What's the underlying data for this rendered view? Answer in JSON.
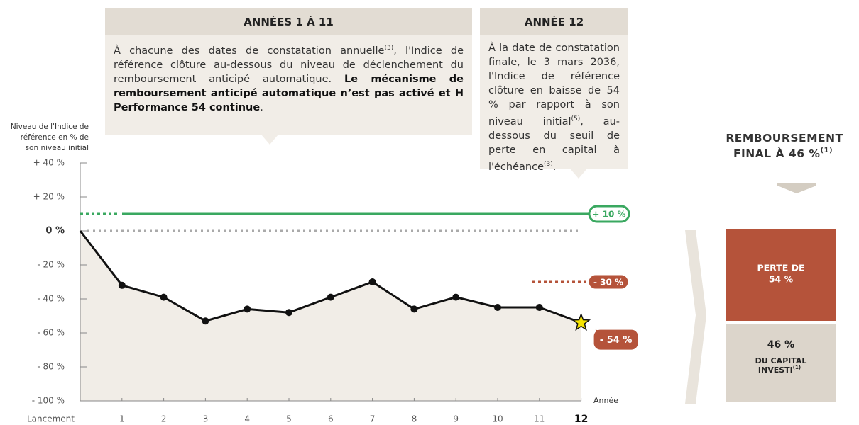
{
  "chart_data": {
    "type": "line",
    "y_axis_label": [
      "Niveau de l'Indice de",
      "référence en % de",
      "son niveau initial"
    ],
    "x_axis_label": "Année",
    "categories": [
      "Lancement",
      "1",
      "2",
      "3",
      "4",
      "5",
      "6",
      "7",
      "8",
      "9",
      "10",
      "11",
      "12"
    ],
    "values": [
      0,
      -32,
      -39,
      -53,
      -46,
      -48,
      -39,
      -30,
      -46,
      -39,
      -45,
      -45,
      -54
    ],
    "color": "#111111",
    "final_label": "- 54 %",
    "final_color": "#b5533a",
    "ylim": [
      -100,
      40
    ],
    "yticks": [
      {
        "value": 40,
        "label": "+ 40 %"
      },
      {
        "value": 20,
        "label": "+ 20 %"
      },
      {
        "value": 0,
        "label": "0 %"
      },
      {
        "value": -20,
        "label": "- 20 %"
      },
      {
        "value": -40,
        "label": "- 40 %"
      },
      {
        "value": -60,
        "label": "- 60 %"
      },
      {
        "value": -80,
        "label": "- 80 %"
      },
      {
        "value": -100,
        "label": "- 100 %"
      }
    ],
    "reference_lines": [
      {
        "value": 10,
        "label": "+ 10 %",
        "color": "#3aa860"
      },
      {
        "value": -30,
        "label": "- 30 %",
        "color": "#b5533a"
      },
      {
        "value": 0,
        "color": "#aaaaaa"
      }
    ]
  },
  "boxes": [
    {
      "title": "ANNÉES 1 À 11",
      "runs": [
        {
          "text": "À chacune des dates de constatation annuelle"
        },
        {
          "text": "(3)",
          "style": "sup"
        },
        {
          "text": ", l'Indice de référence clôture au-dessous du niveau de déclenchement du remboursement anticipé automatique. "
        },
        {
          "text": "Le mécanisme de remboursement anticipé automatique n’est pas activé et H Performance 54 continue",
          "style": "bold"
        },
        {
          "text": "."
        }
      ]
    },
    {
      "title": "ANNÉE 12",
      "runs": [
        {
          "text": "À la date de constatation finale, le 3 mars 2036, l'Indice de référence clôture en baisse de 54 % par rapport à son niveau initial"
        },
        {
          "text": "(5)",
          "style": "sup"
        },
        {
          "text": ", au-dessous du seuil de perte en capital à l'échéance"
        },
        {
          "text": "(3)",
          "style": "sup"
        },
        {
          "text": "."
        }
      ]
    }
  ],
  "result": {
    "title": "REMBOURSEMENT FINAL À 46 %",
    "title_sup": "(1)",
    "loss": [
      "PERTE DE",
      "54 %"
    ],
    "kept": [
      "46 %",
      "DU CAPITAL INVESTI"
    ],
    "kept_sup": "(1)"
  }
}
